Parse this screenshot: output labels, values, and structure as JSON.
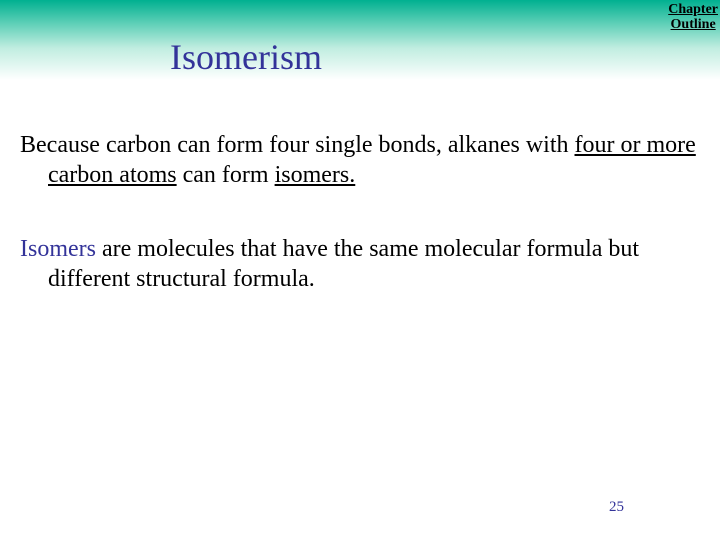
{
  "header": {
    "chapter_link_line1": "Chapter",
    "chapter_link_line2": "Outline",
    "title": "Isomerism",
    "gradient_top": "#00b090",
    "gradient_bottom": "#ffffff",
    "title_color": "#333399"
  },
  "body": {
    "p1_a": "Because carbon can form four single bonds, alkanes with ",
    "p1_b": "four or more carbon atoms",
    "p1_c": " can form ",
    "p1_d": "isomers.",
    "p2_a": "Isomers",
    "p2_b": " are molecules that have the same molecular formula but different structural formula.",
    "text_color": "#000000",
    "term_color": "#333399",
    "body_fontsize": 24
  },
  "footer": {
    "page_number": "25",
    "page_number_color": "#333399"
  }
}
